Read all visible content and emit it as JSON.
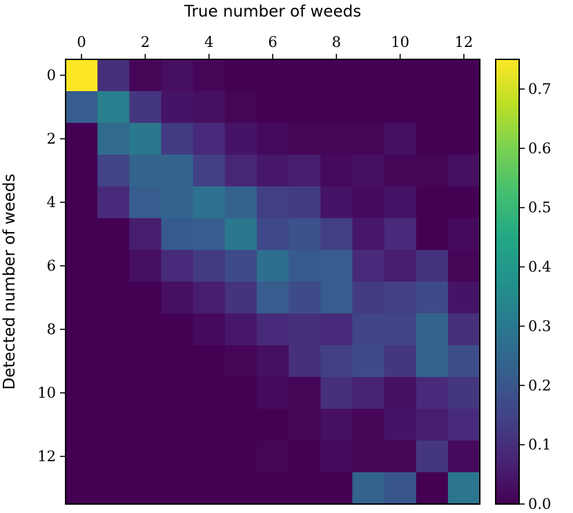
{
  "chart_data": {
    "type": "heatmap",
    "xlabel": "True number of weeds",
    "ylabel": "Detected number of weeds",
    "x_categories": [
      0,
      1,
      2,
      3,
      4,
      5,
      6,
      7,
      8,
      9,
      10,
      11,
      12
    ],
    "y_categories": [
      0,
      1,
      2,
      3,
      4,
      5,
      6,
      7,
      8,
      9,
      10,
      11,
      12,
      13
    ],
    "x_ticks": [
      "0",
      "2",
      "4",
      "6",
      "8",
      "10",
      "12"
    ],
    "y_ticks": [
      "0",
      "2",
      "4",
      "6",
      "8",
      "10",
      "12"
    ],
    "x_tick_values": [
      0,
      2,
      4,
      6,
      8,
      10,
      12
    ],
    "y_tick_values": [
      0,
      2,
      4,
      6,
      8,
      10,
      12
    ],
    "x_axis_position": "top",
    "colormap": "viridis",
    "colorbar": {
      "vmin": 0.0,
      "vmax": 0.75,
      "ticks": [
        0.0,
        0.1,
        0.2,
        0.3,
        0.4,
        0.5,
        0.6,
        0.7
      ],
      "tick_labels": [
        "0.0",
        "0.1",
        "0.2",
        "0.3",
        "0.4",
        "0.5",
        "0.6",
        "0.7"
      ]
    },
    "z": [
      [
        0.75,
        0.1,
        0.01,
        0.03,
        0.01,
        0.0,
        0.0,
        0.0,
        0.0,
        0.0,
        0.0,
        0.0,
        0.0
      ],
      [
        0.22,
        0.32,
        0.12,
        0.04,
        0.03,
        0.01,
        0.0,
        0.0,
        0.0,
        0.0,
        0.0,
        0.0,
        0.0
      ],
      [
        0.0,
        0.26,
        0.3,
        0.13,
        0.09,
        0.04,
        0.02,
        0.01,
        0.01,
        0.01,
        0.03,
        0.0,
        0.0
      ],
      [
        0.0,
        0.15,
        0.24,
        0.24,
        0.14,
        0.08,
        0.05,
        0.06,
        0.02,
        0.03,
        0.01,
        0.01,
        0.03
      ],
      [
        0.0,
        0.09,
        0.22,
        0.24,
        0.28,
        0.23,
        0.14,
        0.13,
        0.04,
        0.02,
        0.04,
        0.0,
        0.0
      ],
      [
        0.0,
        0.0,
        0.06,
        0.21,
        0.22,
        0.3,
        0.16,
        0.19,
        0.14,
        0.05,
        0.09,
        0.0,
        0.02
      ],
      [
        0.0,
        0.0,
        0.03,
        0.09,
        0.13,
        0.17,
        0.27,
        0.21,
        0.22,
        0.09,
        0.06,
        0.11,
        0.01
      ],
      [
        0.0,
        0.0,
        0.0,
        0.03,
        0.06,
        0.11,
        0.22,
        0.17,
        0.22,
        0.13,
        0.14,
        0.17,
        0.04
      ],
      [
        0.0,
        0.0,
        0.0,
        0.0,
        0.02,
        0.05,
        0.09,
        0.1,
        0.09,
        0.15,
        0.15,
        0.24,
        0.1
      ],
      [
        0.0,
        0.0,
        0.0,
        0.0,
        0.0,
        0.01,
        0.03,
        0.1,
        0.14,
        0.17,
        0.12,
        0.24,
        0.18
      ],
      [
        0.0,
        0.0,
        0.0,
        0.0,
        0.0,
        0.0,
        0.02,
        0.01,
        0.1,
        0.07,
        0.03,
        0.09,
        0.12
      ],
      [
        0.0,
        0.0,
        0.0,
        0.0,
        0.0,
        0.0,
        0.0,
        0.01,
        0.03,
        0.01,
        0.04,
        0.06,
        0.09
      ],
      [
        0.0,
        0.0,
        0.0,
        0.0,
        0.0,
        0.0,
        0.01,
        0.0,
        0.02,
        0.01,
        0.01,
        0.12,
        0.02
      ],
      [
        0.0,
        0.0,
        0.0,
        0.0,
        0.0,
        0.0,
        0.0,
        0.0,
        0.0,
        0.24,
        0.2,
        0.0,
        0.29
      ]
    ]
  }
}
